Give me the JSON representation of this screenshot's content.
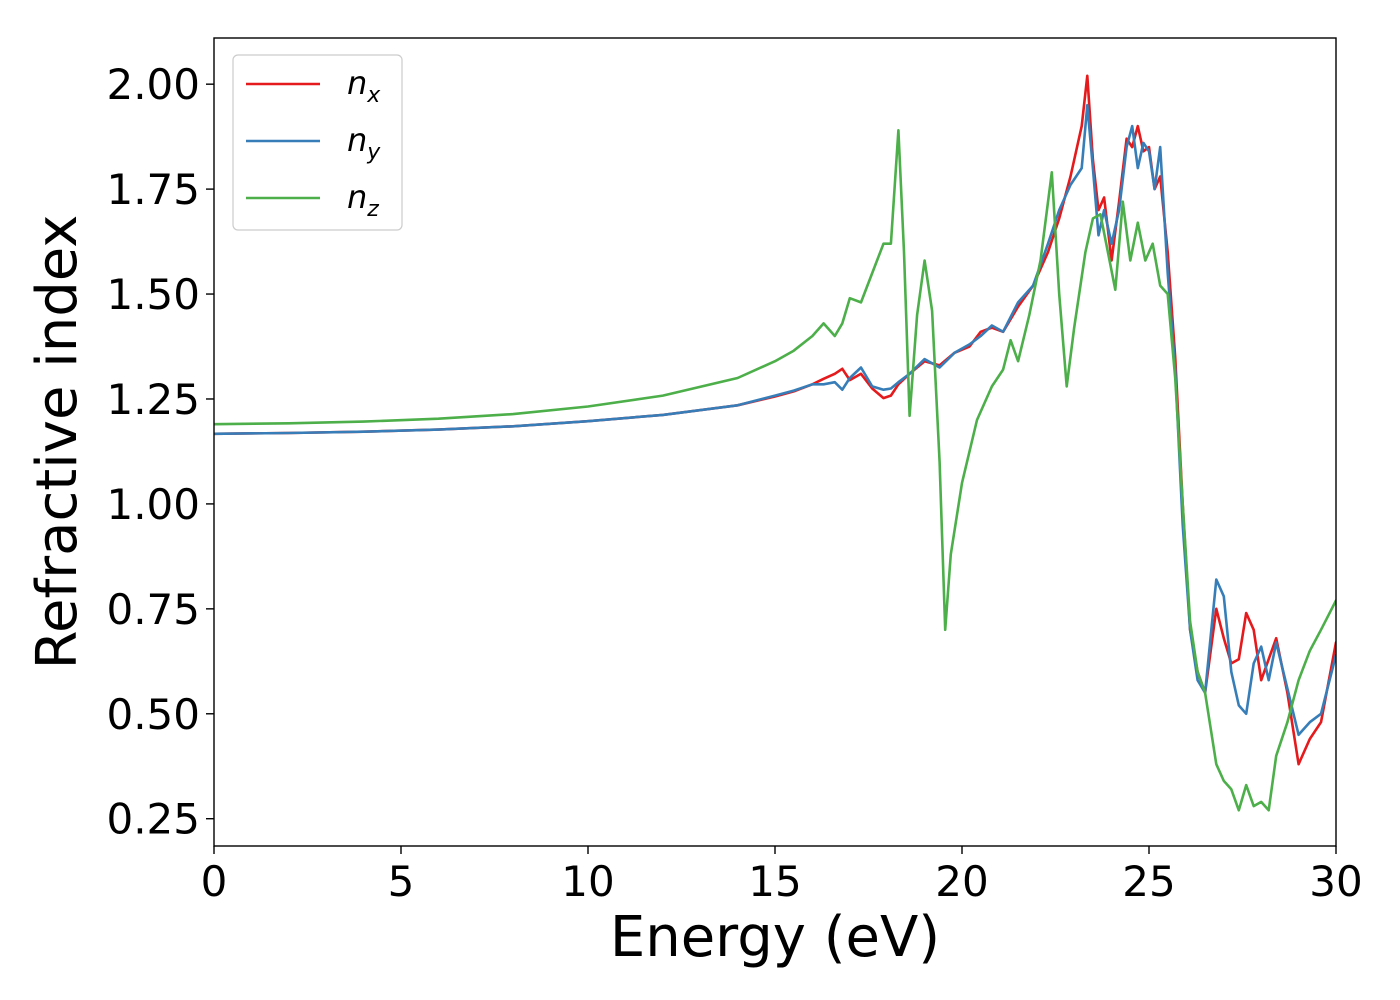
{
  "chart_data": {
    "type": "line",
    "xlabel": "Energy (eV)",
    "ylabel": "Refractive index",
    "xlim": [
      0,
      30
    ],
    "ylim": [
      0.185,
      2.11
    ],
    "xticks": [
      "0",
      "5",
      "10",
      "15",
      "20",
      "25",
      "30"
    ],
    "yticks": [
      "0.25",
      "0.50",
      "0.75",
      "1.00",
      "1.25",
      "1.50",
      "1.75",
      "2.00"
    ],
    "grid": false,
    "legend_position": "top-left",
    "series": [
      {
        "name": "n_x",
        "label_base": "n",
        "label_sub": "x",
        "color": "#e41a1c",
        "x": [
          0,
          2,
          4,
          6,
          8,
          10,
          12,
          14,
          15,
          15.5,
          16,
          16.3,
          16.6,
          16.8,
          17.0,
          17.3,
          17.6,
          17.9,
          18.1,
          18.3,
          18.6,
          19.0,
          19.4,
          19.8,
          20.2,
          20.5,
          20.8,
          21.1,
          21.5,
          21.9,
          22.3,
          22.6,
          22.9,
          23.2,
          23.35,
          23.5,
          23.65,
          23.8,
          24.0,
          24.2,
          24.4,
          24.55,
          24.7,
          24.85,
          25.0,
          25.15,
          25.3,
          25.5,
          25.7,
          25.9,
          26.1,
          26.3,
          26.5,
          26.8,
          27.0,
          27.2,
          27.4,
          27.6,
          27.8,
          28.0,
          28.2,
          28.4,
          28.7,
          29.0,
          29.3,
          29.6,
          30.0
        ],
        "y": [
          1.167,
          1.169,
          1.172,
          1.177,
          1.185,
          1.197,
          1.212,
          1.235,
          1.256,
          1.268,
          1.285,
          1.298,
          1.31,
          1.322,
          1.295,
          1.31,
          1.275,
          1.252,
          1.258,
          1.285,
          1.31,
          1.34,
          1.33,
          1.36,
          1.375,
          1.41,
          1.42,
          1.41,
          1.47,
          1.52,
          1.6,
          1.68,
          1.78,
          1.9,
          2.02,
          1.82,
          1.7,
          1.73,
          1.58,
          1.72,
          1.87,
          1.85,
          1.9,
          1.84,
          1.85,
          1.75,
          1.78,
          1.6,
          1.35,
          1.0,
          0.7,
          0.6,
          0.55,
          0.75,
          0.68,
          0.62,
          0.63,
          0.74,
          0.7,
          0.58,
          0.63,
          0.68,
          0.55,
          0.38,
          0.44,
          0.48,
          0.67
        ]
      },
      {
        "name": "n_y",
        "label_base": "n",
        "label_sub": "y",
        "color": "#377eb8",
        "x": [
          0,
          2,
          4,
          6,
          8,
          10,
          12,
          14,
          15,
          15.5,
          16,
          16.3,
          16.6,
          16.8,
          17.0,
          17.3,
          17.6,
          17.9,
          18.1,
          18.3,
          18.6,
          19.0,
          19.4,
          19.8,
          20.2,
          20.5,
          20.8,
          21.1,
          21.5,
          21.9,
          22.3,
          22.6,
          22.9,
          23.2,
          23.35,
          23.5,
          23.65,
          23.8,
          24.0,
          24.2,
          24.4,
          24.55,
          24.7,
          24.85,
          25.0,
          25.15,
          25.3,
          25.5,
          25.7,
          25.9,
          26.1,
          26.3,
          26.5,
          26.8,
          27.0,
          27.2,
          27.4,
          27.6,
          27.8,
          28.0,
          28.2,
          28.4,
          28.7,
          29.0,
          29.3,
          29.6,
          30.0
        ],
        "y": [
          1.167,
          1.169,
          1.172,
          1.177,
          1.185,
          1.197,
          1.212,
          1.235,
          1.258,
          1.27,
          1.285,
          1.285,
          1.29,
          1.272,
          1.3,
          1.325,
          1.28,
          1.272,
          1.275,
          1.29,
          1.31,
          1.345,
          1.325,
          1.36,
          1.38,
          1.4,
          1.425,
          1.41,
          1.48,
          1.52,
          1.62,
          1.7,
          1.76,
          1.8,
          1.95,
          1.8,
          1.64,
          1.7,
          1.62,
          1.7,
          1.85,
          1.9,
          1.8,
          1.86,
          1.84,
          1.75,
          1.85,
          1.55,
          1.32,
          0.95,
          0.7,
          0.58,
          0.55,
          0.82,
          0.78,
          0.6,
          0.52,
          0.5,
          0.62,
          0.66,
          0.58,
          0.67,
          0.56,
          0.45,
          0.48,
          0.5,
          0.64
        ]
      },
      {
        "name": "n_z",
        "label_base": "n",
        "label_sub": "z",
        "color": "#4daf4a",
        "x": [
          0,
          2,
          4,
          6,
          8,
          10,
          12,
          14,
          15,
          15.5,
          16,
          16.3,
          16.6,
          16.8,
          17.0,
          17.3,
          17.6,
          17.9,
          18.1,
          18.3,
          18.45,
          18.6,
          18.8,
          19.0,
          19.2,
          19.4,
          19.55,
          19.7,
          20.0,
          20.4,
          20.8,
          21.1,
          21.3,
          21.5,
          21.8,
          22.1,
          22.4,
          22.6,
          22.8,
          23.0,
          23.3,
          23.5,
          23.7,
          23.9,
          24.1,
          24.3,
          24.5,
          24.7,
          24.9,
          25.1,
          25.3,
          25.5,
          25.7,
          25.9,
          26.1,
          26.3,
          26.5,
          26.8,
          27.0,
          27.2,
          27.4,
          27.6,
          27.8,
          28.0,
          28.2,
          28.4,
          28.7,
          29.0,
          29.3,
          29.6,
          30.0
        ],
        "y": [
          1.19,
          1.192,
          1.196,
          1.203,
          1.214,
          1.232,
          1.258,
          1.3,
          1.34,
          1.365,
          1.4,
          1.43,
          1.4,
          1.43,
          1.49,
          1.48,
          1.55,
          1.62,
          1.62,
          1.89,
          1.6,
          1.21,
          1.45,
          1.58,
          1.46,
          1.1,
          0.7,
          0.88,
          1.05,
          1.2,
          1.28,
          1.32,
          1.39,
          1.34,
          1.45,
          1.58,
          1.79,
          1.5,
          1.28,
          1.42,
          1.6,
          1.68,
          1.69,
          1.6,
          1.51,
          1.72,
          1.58,
          1.67,
          1.58,
          1.62,
          1.52,
          1.5,
          1.3,
          1.0,
          0.72,
          0.6,
          0.55,
          0.38,
          0.34,
          0.32,
          0.27,
          0.33,
          0.28,
          0.29,
          0.27,
          0.4,
          0.48,
          0.58,
          0.65,
          0.7,
          0.77
        ]
      }
    ]
  }
}
